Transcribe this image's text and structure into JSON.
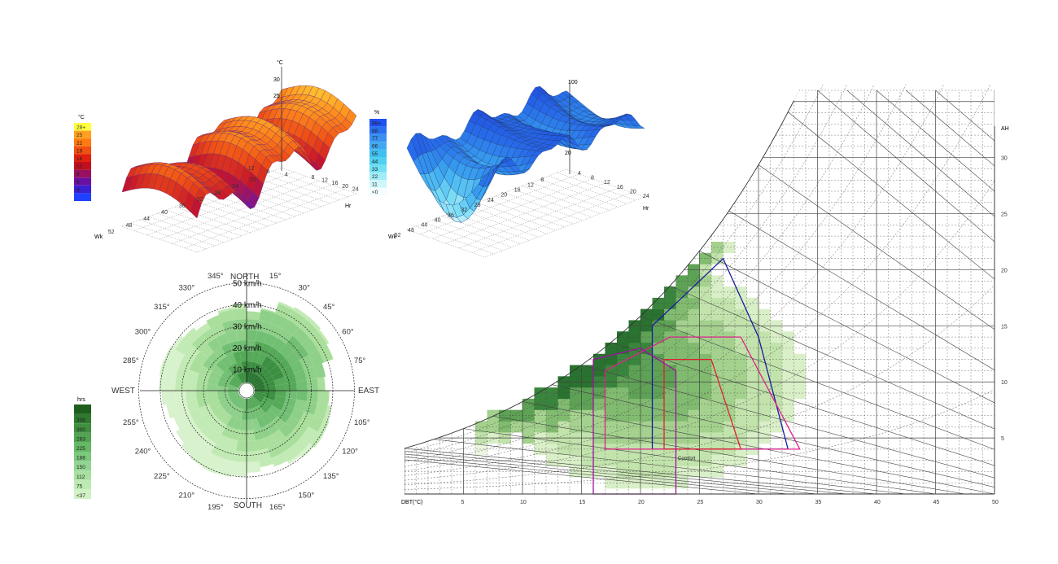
{
  "chart_data": [
    {
      "type": "surface",
      "z_label": "°C",
      "z_ticks": [
        "30",
        "25"
      ],
      "week_label": "Wk",
      "week_ticks": [
        "52",
        "48",
        "44",
        "40",
        "36",
        "32",
        "28",
        "24",
        "20"
      ],
      "hour_label": "Hr",
      "hour_ticks": [
        "12",
        "8",
        "4",
        "8",
        "12",
        "16",
        "20",
        "24"
      ],
      "legend_unit": "°C",
      "legend": [
        {
          "label": "28+",
          "color": "#ffff40"
        },
        {
          "label": "25",
          "color": "#ffa020"
        },
        {
          "label": "22",
          "color": "#ff7a10"
        },
        {
          "label": "19",
          "color": "#f05010"
        },
        {
          "label": "16",
          "color": "#e02010"
        },
        {
          "label": "12",
          "color": "#c01020"
        },
        {
          "label": "9",
          "color": "#9a1060"
        },
        {
          "label": "6",
          "color": "#6a10a0"
        },
        {
          "label": "3",
          "color": "#3a20d0"
        },
        {
          "label": "",
          "color": "#2040ff"
        }
      ]
    },
    {
      "type": "surface",
      "z_label": "%",
      "z_ticks": [
        "100",
        "20"
      ],
      "week_label": "Wk",
      "week_ticks": [
        "52",
        "48",
        "44",
        "40",
        "36",
        "32",
        "28",
        "24",
        "20",
        "16",
        "12",
        "8"
      ],
      "hour_label": "Hr",
      "hour_ticks": [
        "4",
        "8",
        "12",
        "16",
        "20",
        "24"
      ],
      "legend_unit": "%",
      "legend": [
        {
          "label": "99+",
          "color": "#2050f0"
        },
        {
          "label": "88",
          "color": "#2a70f0"
        },
        {
          "label": "77",
          "color": "#3a90f0"
        },
        {
          "label": "66",
          "color": "#40a8f0"
        },
        {
          "label": "55",
          "color": "#40c0f0"
        },
        {
          "label": "44",
          "color": "#50d0f0"
        },
        {
          "label": "33",
          "color": "#70e0f4"
        },
        {
          "label": "22",
          "color": "#a0ecf8"
        },
        {
          "label": "11",
          "color": "#d0f6fc"
        },
        {
          "label": "<0",
          "color": "#f4feff"
        }
      ]
    },
    {
      "type": "wind-rose",
      "north_label": "NORTH",
      "south_label": "SOUTH",
      "east_label": "EAST",
      "west_label": "WEST",
      "speed_rings": [
        "10 km/h",
        "20 km/h",
        "30 km/h",
        "40 km/h",
        "50 km/h"
      ],
      "angle_labels": [
        "15°",
        "30°",
        "45°",
        "60°",
        "75°",
        "105°",
        "120°",
        "135°",
        "150°",
        "165°",
        "195°",
        "210°",
        "225°",
        "240°",
        "255°",
        "285°",
        "300°",
        "315°",
        "330°",
        "345°"
      ],
      "legend_unit": "hrs",
      "legend": [
        {
          "label": "",
          "color": "#1d5e1d"
        },
        {
          "label": "338",
          "color": "#2f7a2f"
        },
        {
          "label": "300",
          "color": "#3f8f3f"
        },
        {
          "label": "263",
          "color": "#52a352"
        },
        {
          "label": "225",
          "color": "#66b766"
        },
        {
          "label": "188",
          "color": "#7cc87c"
        },
        {
          "label": "150",
          "color": "#92d592"
        },
        {
          "label": "112",
          "color": "#a8e0a0"
        },
        {
          "label": "75",
          "color": "#bdeab2"
        },
        {
          "label": "<37",
          "color": "#d2f2c6"
        }
      ]
    },
    {
      "type": "psychrometric",
      "xlabel": "DBT(°C)",
      "ylabel": "AH",
      "x_ticks": [
        "5",
        "10",
        "15",
        "20",
        "25",
        "30",
        "35",
        "40",
        "45",
        "50"
      ],
      "xlim": [
        0,
        50
      ],
      "y_ticks": [
        "5",
        "10",
        "15",
        "20",
        "25",
        "30"
      ],
      "ylim": [
        0,
        36
      ],
      "comfort_label": "Comfort",
      "zones": [
        {
          "color": "#1a1aa0",
          "points": [
            [
              21,
              4
            ],
            [
              21,
              15
            ],
            [
              27,
              21
            ],
            [
              30,
              14
            ],
            [
              32.5,
              4
            ]
          ]
        },
        {
          "color": "#e0208a",
          "points": [
            [
              17,
              4
            ],
            [
              17,
              11
            ],
            [
              22.5,
              14
            ],
            [
              28.5,
              14
            ],
            [
              33.5,
              4
            ]
          ]
        },
        {
          "color": "#e02030",
          "points": [
            [
              22,
              4
            ],
            [
              22,
              12
            ],
            [
              26,
              12
            ],
            [
              28.5,
              4
            ]
          ]
        },
        {
          "color": "#a010a0",
          "points": [
            [
              16,
              0
            ],
            [
              16,
              12
            ],
            [
              20,
              13
            ],
            [
              23,
              11
            ],
            [
              23,
              0
            ]
          ]
        }
      ]
    }
  ]
}
